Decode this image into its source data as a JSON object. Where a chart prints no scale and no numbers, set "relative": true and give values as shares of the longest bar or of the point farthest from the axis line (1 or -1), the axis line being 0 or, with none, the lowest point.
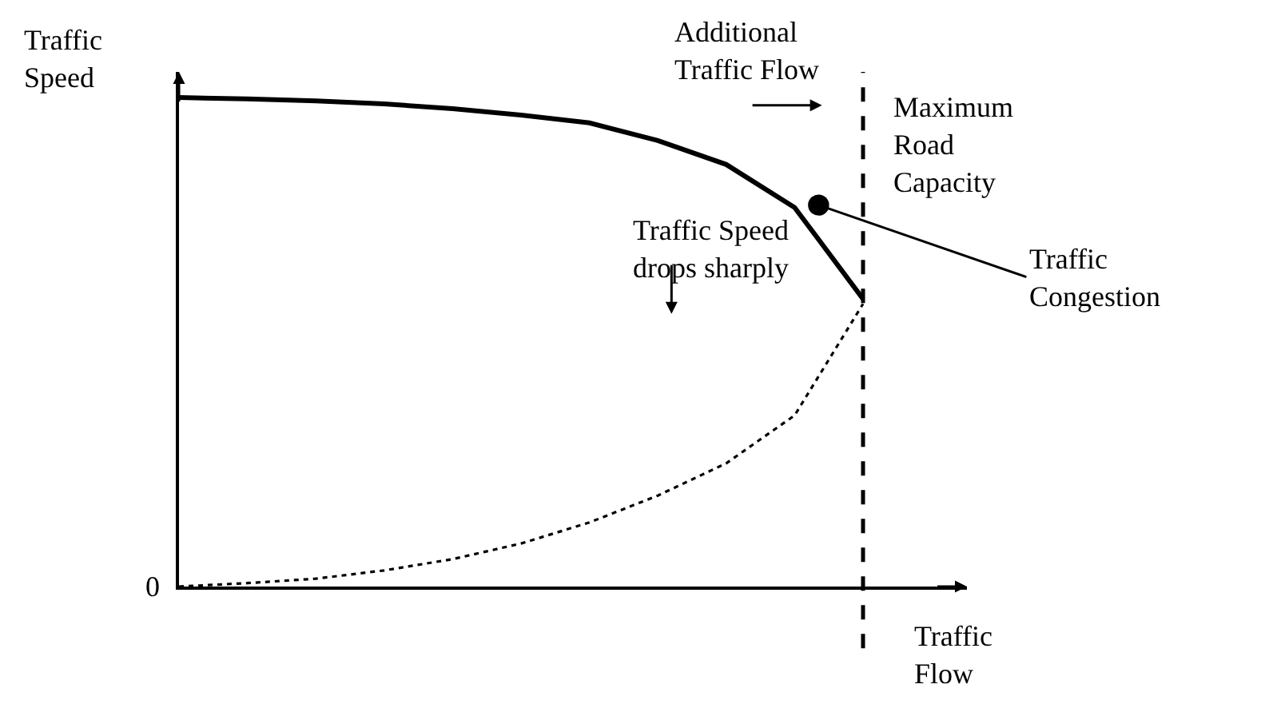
{
  "chart_data": {
    "type": "line",
    "relative": true,
    "categories": [
      null,
      null,
      null,
      null,
      null,
      null,
      null,
      null,
      null,
      null,
      null
    ],
    "xlabel": "Traffic\nFlow",
    "ylabel": "Traffic\nSpeed",
    "series": [
      {
        "color": "#000000",
        "line_style": "solid",
        "values": [
          1.0,
          0.997,
          0.993,
          0.987,
          0.977,
          0.964,
          0.948,
          0.912,
          0.863,
          0.775,
          0.588
        ]
      },
      {
        "color": "#000000",
        "line_style": "dotted",
        "values": [
          0,
          0.007,
          0.016,
          0.033,
          0.056,
          0.088,
          0.131,
          0.186,
          0.252,
          0.35,
          0.578
        ]
      }
    ],
    "annotations": [
      "0",
      "Additional\nTraffic Flow",
      "Traffic Speed\ndrops sharply",
      "Traffic\nCongestion",
      "Maximum\nRoad\nCapacity"
    ]
  }
}
